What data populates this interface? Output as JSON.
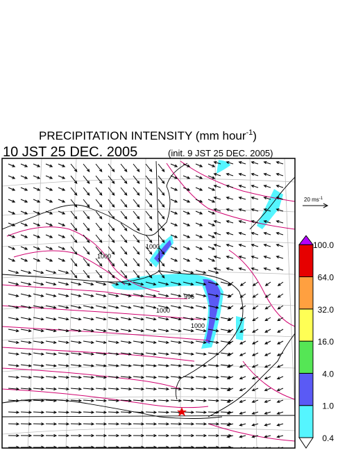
{
  "header": {
    "title_main": "PRECIPITATION INTENSITY (mm hour",
    "title_sup": "-1",
    "title_end": ")",
    "valid_time": "10 JST 25 DEC. 2005",
    "init_time": "(init. 9 JST 25 DEC. 2005)"
  },
  "scale_arrow": {
    "label": "20 ms",
    "sup": "-1"
  },
  "colorbar": {
    "labels": [
      "0.4",
      "1.0",
      "4.0",
      "16.0",
      "32.0",
      "64.0",
      "100.0"
    ],
    "colors": [
      "#ffffff",
      "#55f5ff",
      "#5a5af5",
      "#55e655",
      "#ffff55",
      "#ffa040",
      "#e60000",
      "#b400ff"
    ]
  },
  "contour_labels": [
    "1000",
    "996",
    "1000",
    "1000",
    "1000"
  ]
}
